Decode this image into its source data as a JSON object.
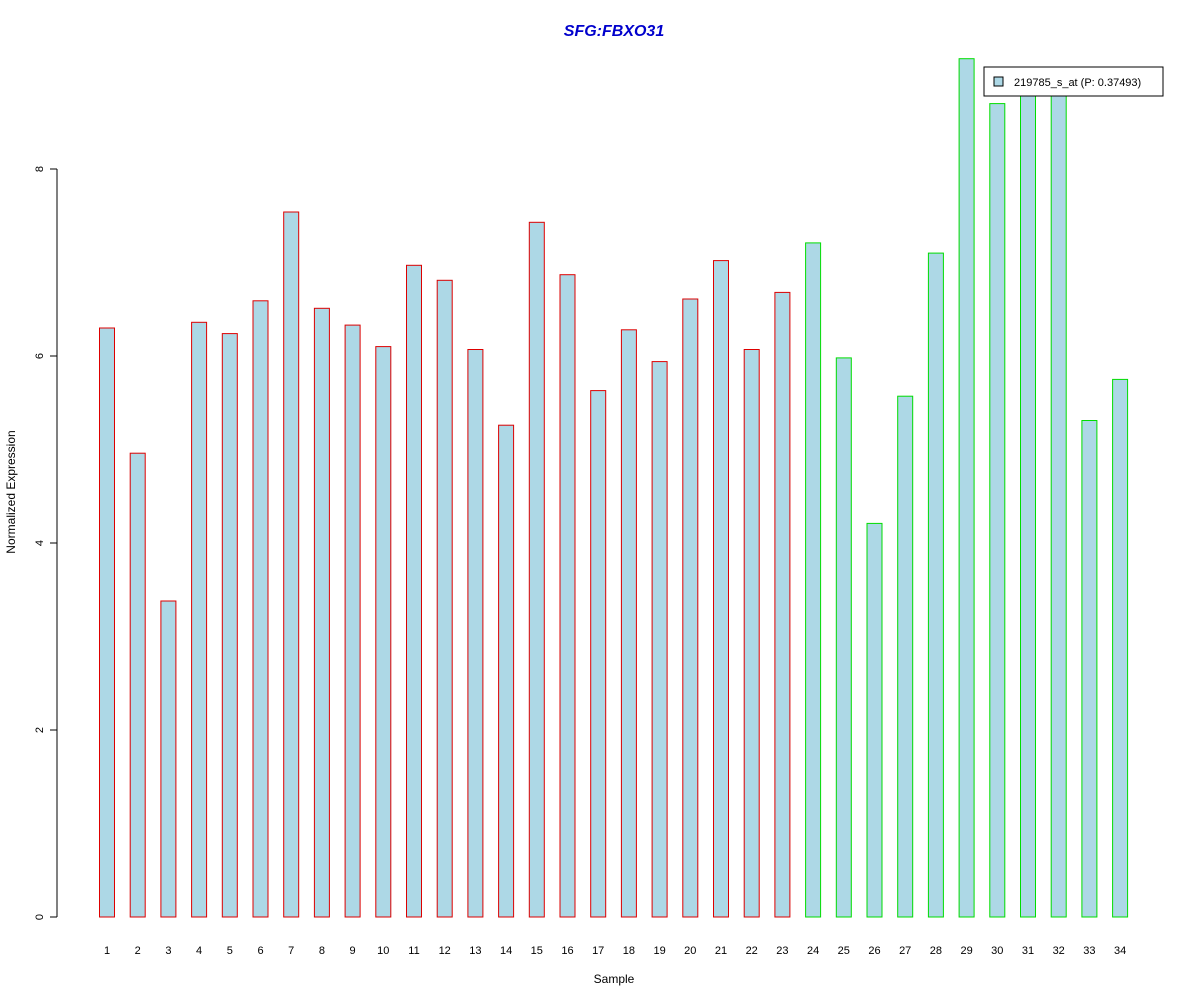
{
  "chart_data": {
    "type": "bar",
    "title": "SFG:FBXO31",
    "title_color": "#0000cc",
    "xlabel": "Sample",
    "ylabel": "Normalized Expression",
    "categories": [
      "1",
      "2",
      "3",
      "4",
      "5",
      "6",
      "7",
      "8",
      "9",
      "10",
      "11",
      "12",
      "13",
      "14",
      "15",
      "16",
      "17",
      "18",
      "19",
      "20",
      "21",
      "22",
      "23",
      "24",
      "25",
      "26",
      "27",
      "28",
      "29",
      "30",
      "31",
      "32",
      "33",
      "34"
    ],
    "series": [
      {
        "name": "219785_s_at (P: 0.37493)",
        "fill": "#add8e6",
        "values": [
          6.3,
          4.96,
          3.38,
          6.36,
          6.24,
          6.59,
          7.54,
          6.51,
          6.33,
          6.1,
          6.97,
          6.81,
          6.07,
          5.26,
          7.43,
          6.87,
          5.63,
          6.28,
          5.94,
          6.61,
          7.02,
          6.07,
          6.68,
          7.21,
          5.98,
          4.21,
          5.57,
          7.1,
          9.18,
          8.7,
          8.8,
          8.8,
          5.31,
          5.75
        ],
        "borders": [
          "#dd0000",
          "#dd0000",
          "#dd0000",
          "#dd0000",
          "#dd0000",
          "#dd0000",
          "#dd0000",
          "#dd0000",
          "#dd0000",
          "#dd0000",
          "#dd0000",
          "#dd0000",
          "#dd0000",
          "#dd0000",
          "#dd0000",
          "#dd0000",
          "#dd0000",
          "#dd0000",
          "#dd0000",
          "#dd0000",
          "#dd0000",
          "#dd0000",
          "#dd0000",
          "#00dd00",
          "#00dd00",
          "#00dd00",
          "#00dd00",
          "#00dd00",
          "#00dd00",
          "#00dd00",
          "#00dd00",
          "#00dd00",
          "#00dd00",
          "#00dd00"
        ]
      }
    ],
    "ylim": [
      0,
      9.2
    ],
    "yticks": [
      0,
      2,
      4,
      6,
      8
    ],
    "ytick_labels": [
      "0",
      "2",
      "4",
      "6",
      "8"
    ],
    "grid": false,
    "legend": {
      "placement": "top-right",
      "label": "219785_s_at (P: 0.37493)"
    }
  }
}
